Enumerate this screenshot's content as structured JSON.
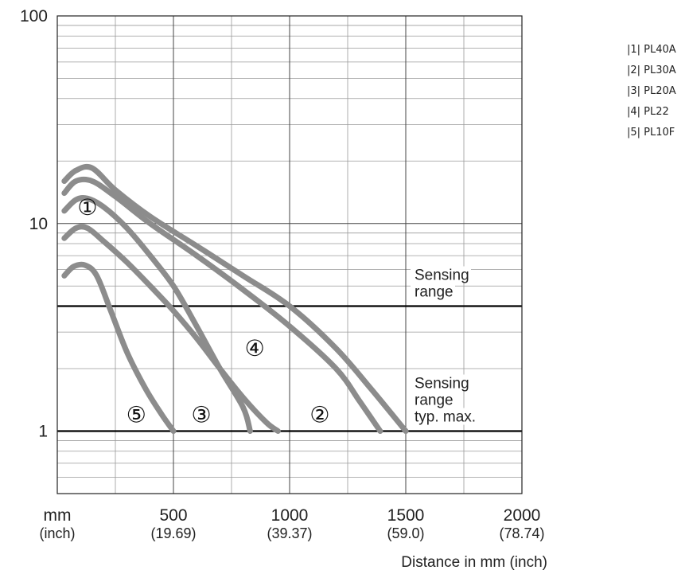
{
  "chart_data": {
    "type": "line",
    "x_scale": "linear",
    "y_scale": "log",
    "xlim": [
      0,
      2000
    ],
    "ylim": [
      0.5,
      100
    ],
    "grid": true,
    "y_ticks": [
      {
        "value": 1,
        "label": "1"
      },
      {
        "value": 10,
        "label": "10"
      },
      {
        "value": 100,
        "label": "100"
      }
    ],
    "x_ticks": [
      {
        "value": 0,
        "label": "mm",
        "sublabel": "(inch)"
      },
      {
        "value": 500,
        "label": "500",
        "sublabel": "(19.69)"
      },
      {
        "value": 1000,
        "label": "1000",
        "sublabel": "(39.37)"
      },
      {
        "value": 1500,
        "label": "1500",
        "sublabel": "(59.0)"
      },
      {
        "value": 2000,
        "label": "2000",
        "sublabel": "(78.74)"
      }
    ],
    "xlabel": "Distance in mm (inch)",
    "ylabel": "",
    "reference_lines": [
      {
        "y": 4,
        "label_lines": [
          "Sensing",
          "range"
        ]
      },
      {
        "y": 1,
        "label_lines": [
          "Sensing",
          "range",
          "typ. max."
        ]
      }
    ],
    "series": [
      {
        "name": "PL40A",
        "marker": "①",
        "label_at": [
          130,
          11
        ],
        "points": [
          [
            30,
            16
          ],
          [
            80,
            18
          ],
          [
            150,
            18.5
          ],
          [
            250,
            14.5
          ],
          [
            400,
            10.8
          ],
          [
            600,
            7.8
          ],
          [
            800,
            5.6
          ],
          [
            1000,
            4
          ],
          [
            1200,
            2.5
          ],
          [
            1350,
            1.6
          ],
          [
            1500,
            1
          ]
        ]
      },
      {
        "name": "PL30A",
        "marker": "②",
        "label_at": [
          1130,
          1.1
        ],
        "points": [
          [
            30,
            14
          ],
          [
            80,
            16
          ],
          [
            150,
            16
          ],
          [
            250,
            13.5
          ],
          [
            400,
            10
          ],
          [
            600,
            7
          ],
          [
            800,
            4.8
          ],
          [
            1000,
            3.2
          ],
          [
            1200,
            2
          ],
          [
            1300,
            1.4
          ],
          [
            1390,
            1
          ]
        ]
      },
      {
        "name": "PL20A",
        "marker": "③",
        "label_at": [
          620,
          1.1
        ],
        "points": [
          [
            30,
            11.5
          ],
          [
            80,
            13
          ],
          [
            130,
            13.2
          ],
          [
            200,
            12
          ],
          [
            300,
            9.5
          ],
          [
            400,
            7
          ],
          [
            500,
            5
          ],
          [
            600,
            3.2
          ],
          [
            700,
            2
          ],
          [
            800,
            1.3
          ],
          [
            830,
            1
          ]
        ]
      },
      {
        "name": "PL22",
        "marker": "④",
        "label_at": [
          850,
          2.3
        ],
        "points": [
          [
            30,
            8.5
          ],
          [
            80,
            9.5
          ],
          [
            130,
            9.5
          ],
          [
            200,
            8.2
          ],
          [
            300,
            6.5
          ],
          [
            400,
            5
          ],
          [
            500,
            3.8
          ],
          [
            600,
            2.8
          ],
          [
            700,
            2
          ],
          [
            800,
            1.45
          ],
          [
            900,
            1.1
          ],
          [
            950,
            1
          ]
        ]
      },
      {
        "name": "PL10F",
        "marker": "⑤",
        "label_at": [
          340,
          1.1
        ],
        "points": [
          [
            30,
            5.6
          ],
          [
            70,
            6.2
          ],
          [
            120,
            6.3
          ],
          [
            170,
            5.6
          ],
          [
            230,
            3.8
          ],
          [
            300,
            2.4
          ],
          [
            380,
            1.6
          ],
          [
            450,
            1.2
          ],
          [
            500,
            1
          ]
        ]
      }
    ]
  },
  "legend": [
    {
      "code": "|1|",
      "name": "PL40A"
    },
    {
      "code": "|2|",
      "name": "PL30A"
    },
    {
      "code": "|3|",
      "name": "PL20A"
    },
    {
      "code": "|4|",
      "name": "PL22"
    },
    {
      "code": "|5|",
      "name": "PL10F"
    }
  ],
  "colors": {
    "curve": "#8c8c8c",
    "grid": "#9a9a9a",
    "reference_line": "#000000",
    "text": "#222222"
  }
}
